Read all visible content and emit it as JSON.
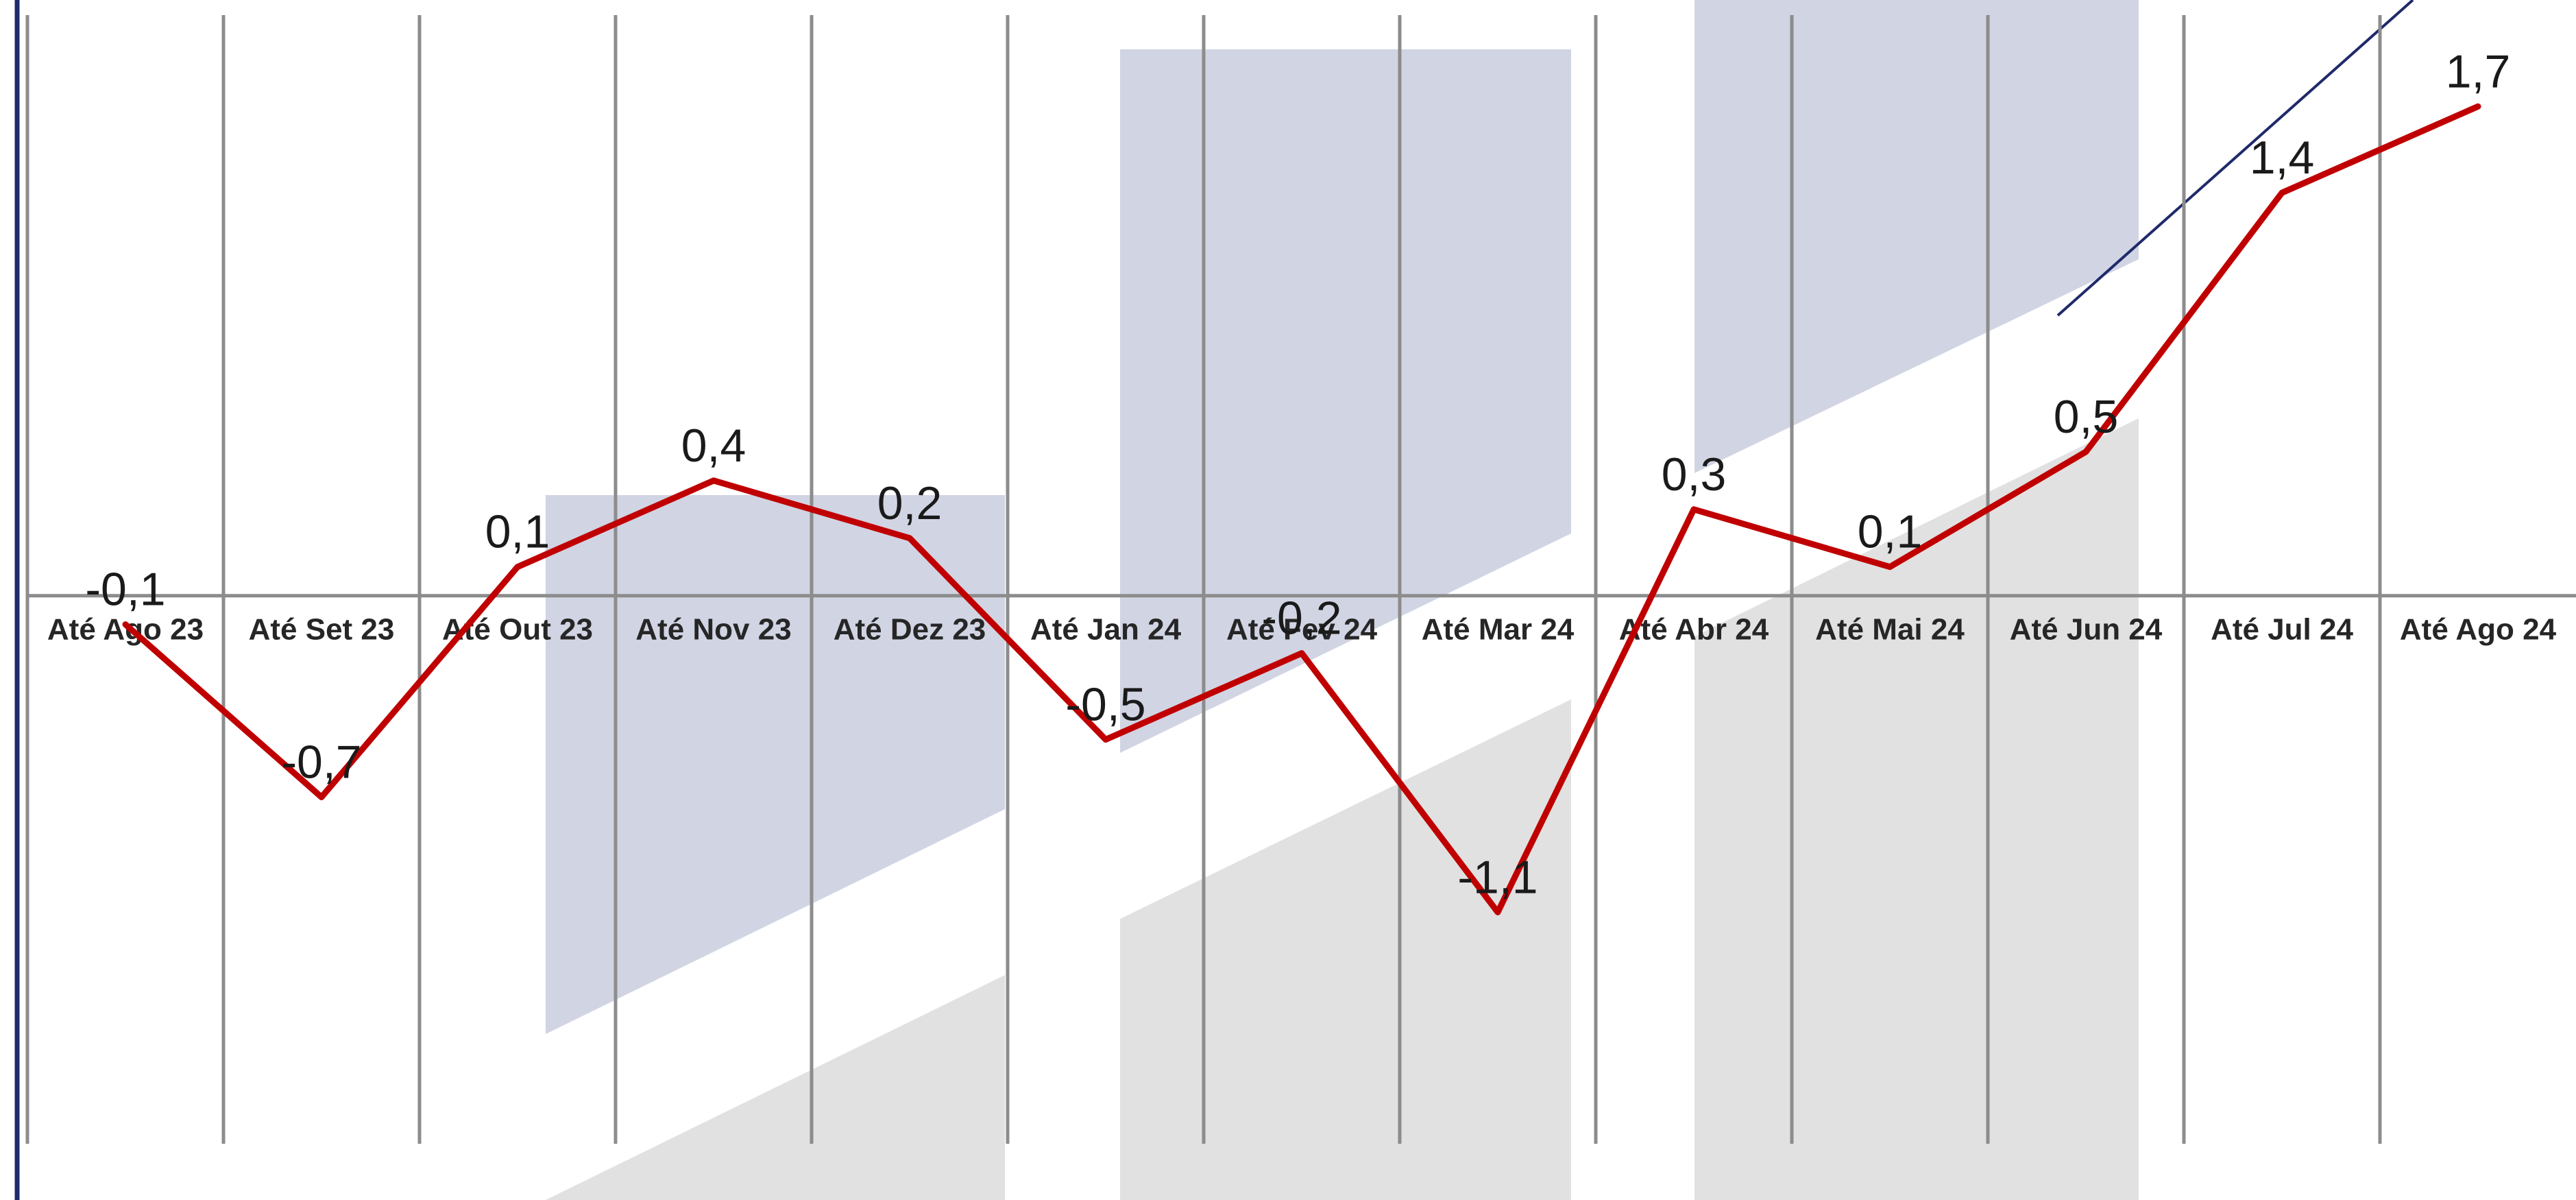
{
  "chart_data": {
    "type": "line",
    "title": "",
    "xlabel": "",
    "ylabel": "",
    "categories": [
      "Até Ago 23",
      "Até Set 23",
      "Até Out 23",
      "Até Nov 23",
      "Até Dez 23",
      "Até Jan 24",
      "Até Fev 24",
      "Até Mar 24",
      "Até Abr 24",
      "Até Mai 24",
      "Até Jun 24",
      "Até Jul 24",
      "Até Ago 24"
    ],
    "series": [
      {
        "values": [
          -0.1,
          -0.7,
          0.1,
          0.4,
          0.2,
          -0.5,
          -0.2,
          -1.1,
          0.3,
          0.1,
          0.5,
          1.4,
          1.7
        ],
        "labels": [
          "-0,1",
          "-0,7",
          "0,1",
          "0,4",
          "0,2",
          "-0,5",
          "-0,2",
          "-1,1",
          "0,3",
          "0,1",
          "0,5",
          "1,4",
          "1,7"
        ],
        "color": "#c00000"
      }
    ],
    "ylim": [
      -2.1,
      2.07
    ],
    "grid": "vertical",
    "legend": "none"
  },
  "colors": {
    "line": "#c00000",
    "gridline": "#8c8c8c",
    "axis": "#8c8c8c",
    "left_border": "#1f2a6b",
    "watermark_blue": "#d1d4e3",
    "watermark_gray": "#e1e1e1",
    "watermark_stroke": "#1f2a6b"
  }
}
